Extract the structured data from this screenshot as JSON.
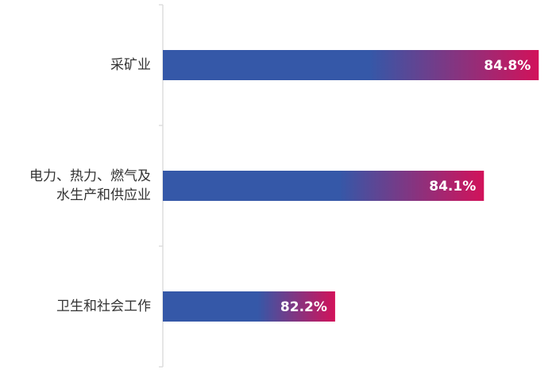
{
  "chart_data": {
    "type": "hbar",
    "categories": [
      "采矿业",
      "电力、热力、燃气及\n水生产和供应业",
      "卫生和社会工作"
    ],
    "values": [
      84.8,
      84.1,
      82.2
    ],
    "value_labels": [
      "84.8%",
      "84.1%",
      "82.2%"
    ],
    "xlim": [
      80,
      85
    ],
    "gradient": [
      "#3558a8",
      "#d2125a"
    ]
  }
}
